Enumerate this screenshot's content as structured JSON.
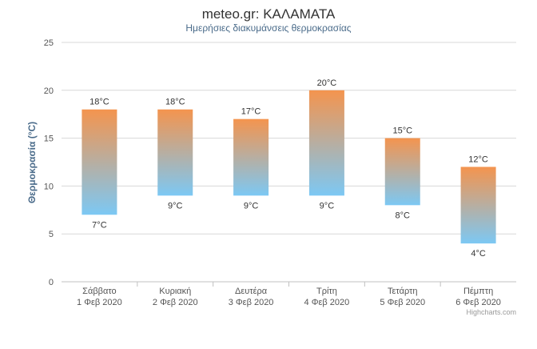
{
  "chart_data": {
    "type": "columnrange",
    "title": "meteo.gr: ΚΑΛΑΜΑΤΑ",
    "subtitle": "Ημερήσιες διακυμάνσεις θερμοκρασίας",
    "ylabel": "Θερμοκρασία (°C)",
    "xlabel": "",
    "ylim": [
      0,
      25
    ],
    "yticks": [
      "0",
      "5",
      "10",
      "15",
      "20",
      "25"
    ],
    "grid": true,
    "legend": "none",
    "categories": [
      [
        "Σάββατο",
        "1 Φεβ 2020"
      ],
      [
        "Κυριακή",
        "2 Φεβ 2020"
      ],
      [
        "Δευτέρα",
        "3 Φεβ 2020"
      ],
      [
        "Τρίτη",
        "4 Φεβ 2020"
      ],
      [
        "Τετάρτη",
        "5 Φεβ 2020"
      ],
      [
        "Πέμπτη",
        "6 Φεβ 2020"
      ]
    ],
    "low": [
      7,
      9,
      9,
      9,
      8,
      4
    ],
    "high": [
      18,
      18,
      17,
      20,
      15,
      12
    ],
    "low_labels": [
      "7°C",
      "9°C",
      "9°C",
      "9°C",
      "8°C",
      "4°C"
    ],
    "high_labels": [
      "18°C",
      "18°C",
      "17°C",
      "20°C",
      "15°C",
      "12°C"
    ],
    "colors": {
      "bar_top": "#F4944E",
      "bar_bottom": "#7CC8F4",
      "title": "#333333",
      "subtitle": "#4A6B8A",
      "axis_title": "#4A6B8A",
      "grid": "#d8d8d8",
      "text": "#555555"
    }
  },
  "credit": "Highcharts.com"
}
